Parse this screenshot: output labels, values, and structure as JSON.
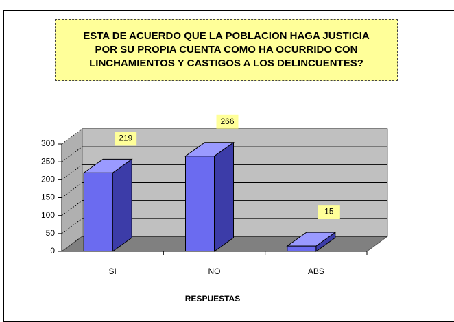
{
  "chart_data": {
    "type": "bar",
    "title": "ESTA DE ACUERDO QUE LA POBLACION HAGA JUSTICIA POR SU PROPIA CUENTA COMO HA OCURRIDO CON LINCHAMIENTOS Y CASTIGOS A LOS DELINCUENTES?",
    "categories": [
      "SI",
      "NO",
      "ABS"
    ],
    "values": [
      219,
      266,
      15
    ],
    "color": "#6b6bf0",
    "ylim": [
      0,
      300
    ],
    "yticks": [
      0,
      50,
      100,
      150,
      200,
      250,
      300
    ],
    "grid": true,
    "xlabel": "RESPUESTAS"
  }
}
